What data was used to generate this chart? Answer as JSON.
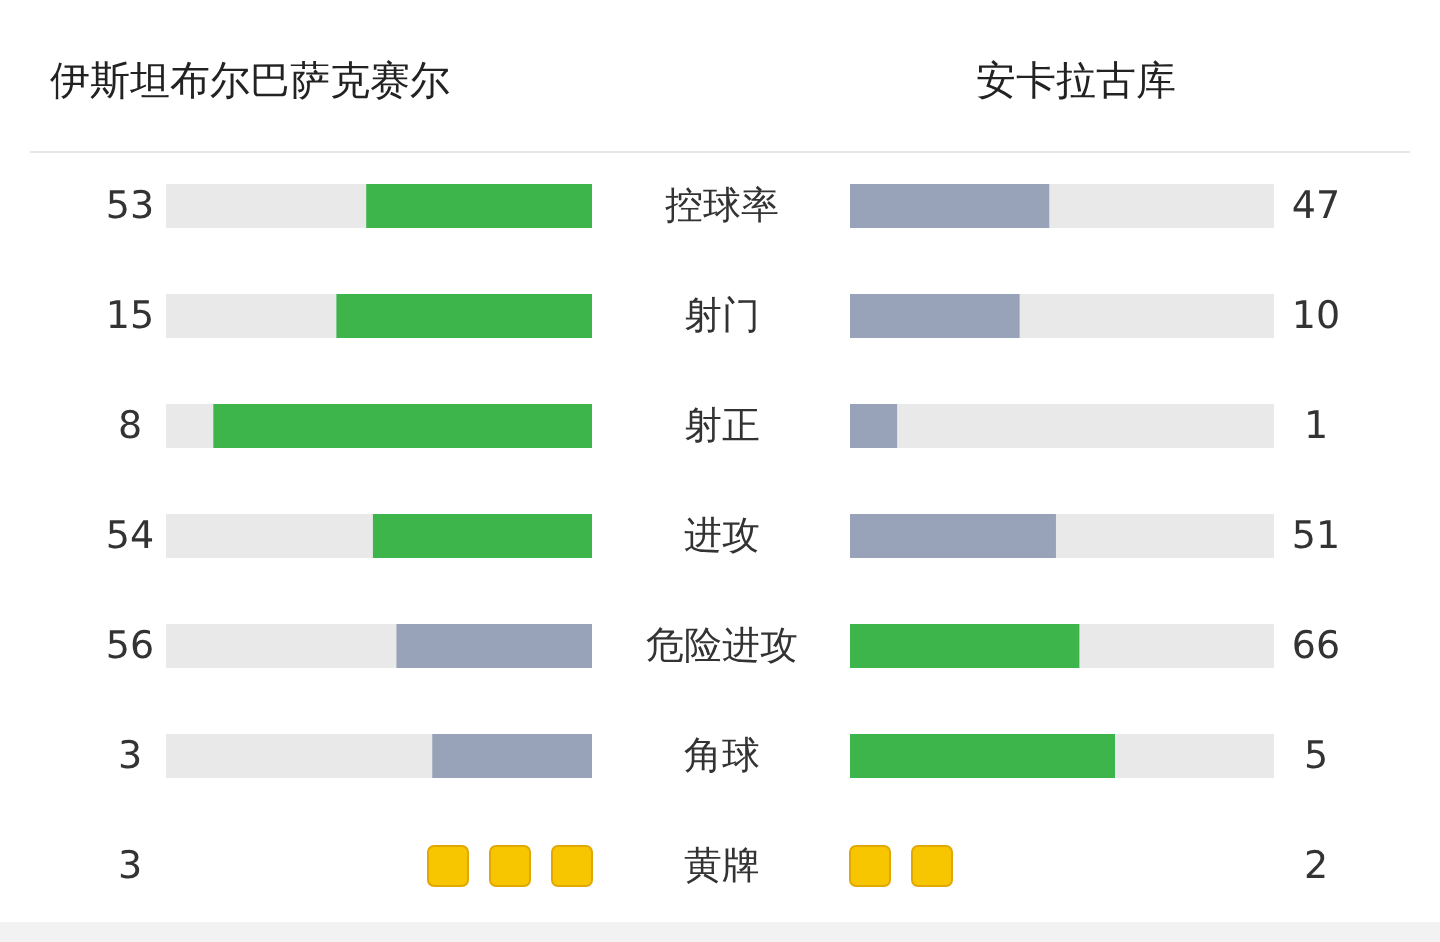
{
  "chart_data": [
    {
      "type": "other",
      "categories": [
        "控球率",
        "射门",
        "射正",
        "进攻",
        "危险进攻",
        "角球"
      ],
      "data_labels": true,
      "series": [
        {
          "name": "伊斯坦布尔巴萨克赛尔",
          "values": [
            53,
            15,
            8,
            54,
            56,
            3
          ],
          "colors": [
            "#3db54a",
            "#3db54a",
            "#3db54a",
            "#3db54a",
            "#98a2b8",
            "#98a2b8"
          ]
        },
        {
          "name": "安卡拉古库",
          "values": [
            47,
            10,
            1,
            51,
            66,
            5
          ],
          "colors": [
            "#98a2b8",
            "#98a2b8",
            "#98a2b8",
            "#98a2b8",
            "#3db54a",
            "#3db54a"
          ]
        }
      ]
    },
    {
      "type": "other",
      "categories": [
        "黄牌"
      ],
      "data_labels": true,
      "series": [
        {
          "values": [
            3
          ],
          "color": "#f7c600"
        },
        {
          "values": [
            2
          ],
          "color": "#f7c600"
        }
      ]
    }
  ]
}
